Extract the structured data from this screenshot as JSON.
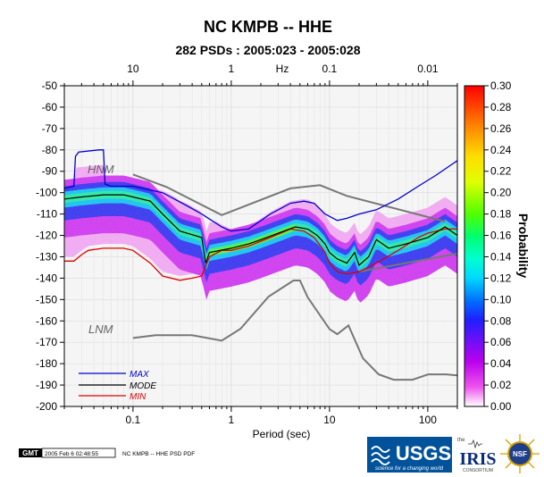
{
  "chart_data": {
    "type": "heatmap",
    "title": "NC KMPB -- HHE",
    "subtitle": "282 PSDs : 2005:023 - 2005:028",
    "xlabel": "Period (sec)",
    "top_axis_unit": "Hz",
    "colorbar_label": "Probability",
    "xscale": "log",
    "xlim": [
      0.02,
      200
    ],
    "ylim": [
      -200,
      -50
    ],
    "x_ticks": [
      "0.1",
      "1",
      "10",
      "100"
    ],
    "top_ticks": [
      "10",
      "1",
      "0.1",
      "0.01"
    ],
    "y_ticks": [
      "-50",
      "-60",
      "-70",
      "-80",
      "-90",
      "-100",
      "-110",
      "-120",
      "-130",
      "-140",
      "-150",
      "-160",
      "-170",
      "-180",
      "-190",
      "-200"
    ],
    "colorbar_ticks": [
      "0.00",
      "0.02",
      "0.04",
      "0.06",
      "0.08",
      "0.10",
      "0.12",
      "0.14",
      "0.16",
      "0.18",
      "0.20",
      "0.22",
      "0.24",
      "0.26",
      "0.28",
      "0.30"
    ],
    "colorbar_range": [
      0,
      0.3
    ],
    "grid": true,
    "legend_position": "bottom-left",
    "series": [
      {
        "name": "MAX",
        "color": "#0000cc",
        "x": [
          0.02,
          0.025,
          0.026,
          0.028,
          0.045,
          0.05,
          0.052,
          0.06,
          0.07,
          0.1,
          0.2,
          0.35,
          0.5,
          0.8,
          1.0,
          1.5,
          2.5,
          4.0,
          5.5,
          7.0,
          9.0,
          12,
          15,
          20,
          30,
          50,
          80,
          120,
          200
        ],
        "y": [
          -98,
          -97,
          -83,
          -81,
          -80,
          -80,
          -96,
          -97,
          -97,
          -97,
          -100,
          -106,
          -110,
          -116,
          -118,
          -117,
          -110,
          -105,
          -104,
          -105,
          -110,
          -113,
          -112,
          -110,
          -108,
          -103,
          -97,
          -92,
          -85
        ]
      },
      {
        "name": "MODE",
        "color": "#000000",
        "x": [
          0.02,
          0.03,
          0.05,
          0.08,
          0.1,
          0.15,
          0.2,
          0.3,
          0.5,
          0.55,
          0.6,
          1.0,
          1.5,
          2.0,
          3.0,
          4.5,
          6.0,
          7.5,
          9.0,
          10,
          12,
          15,
          18,
          20,
          25,
          30,
          40,
          60,
          100,
          150,
          200
        ],
        "y": [
          -103,
          -102,
          -101,
          -101,
          -102,
          -104,
          -110,
          -118,
          -121,
          -133,
          -128,
          -126,
          -124,
          -122,
          -119,
          -116,
          -117,
          -120,
          -124,
          -128,
          -131,
          -133,
          -128,
          -134,
          -130,
          -122,
          -126,
          -124,
          -121,
          -116,
          -120
        ]
      },
      {
        "name": "MIN",
        "color": "#e00000",
        "x": [
          0.02,
          0.025,
          0.03,
          0.035,
          0.05,
          0.08,
          0.1,
          0.15,
          0.2,
          0.3,
          0.4,
          0.5,
          0.6,
          0.8,
          1.0,
          1.5,
          2.5,
          4.0,
          5.5,
          7.0,
          9.0,
          10,
          12,
          15,
          20,
          30,
          50,
          80,
          100,
          150,
          200
        ],
        "y": [
          -132,
          -132,
          -129,
          -127,
          -126,
          -126,
          -127,
          -133,
          -139,
          -141,
          -140,
          -139,
          -130,
          -127,
          -127,
          -125,
          -121,
          -117,
          -118,
          -121,
          -128,
          -133,
          -137,
          -138,
          -137,
          -133,
          -127,
          -121,
          -119,
          -117,
          -117
        ]
      },
      {
        "name": "HNM",
        "x": [
          0.1,
          0.22,
          0.8,
          4.0,
          8.0,
          15,
          150
        ],
        "y": [
          -91.5,
          -97.4,
          -110.5,
          -98.0,
          -96.5,
          -101.5,
          -113.5
        ]
      },
      {
        "name": "LNM",
        "x": [
          0.1,
          0.17,
          0.4,
          0.8,
          1.24,
          2.4,
          4.3,
          5.0,
          6.0,
          10,
          12,
          15.6,
          21.9,
          31.6,
          45,
          70,
          101,
          154,
          200
        ],
        "y": [
          -168,
          -166.7,
          -166.7,
          -169.2,
          -163.7,
          -148.6,
          -141.1,
          -141.1,
          -149.0,
          -163.8,
          -166.2,
          -162.1,
          -177.5,
          -185.0,
          -187.5,
          -187.5,
          -185.0,
          -185.0,
          -185.5
        ]
      },
      {
        "name": "",
        "x": [
          20,
          200
        ],
        "y": [
          -137,
          -128.5
        ]
      }
    ]
  },
  "footer": {
    "gmt_logo": "GMT",
    "timestamp": "2005 Feb  6 02:48:55",
    "caption": "NC KMPB -- HHE PSD PDF"
  },
  "logos": {
    "usgs": "USGS",
    "usgs_tagline": "science for a changing world",
    "iris_prefix": "the",
    "iris": "IRIS",
    "iris_sub": "CONSORTIUM",
    "nsf": "NSF"
  },
  "colors": {
    "max": "#0000cc",
    "mode": "#000000",
    "min": "#e00000",
    "noise_model": "#777777",
    "usgs_blue": "#00529b"
  }
}
